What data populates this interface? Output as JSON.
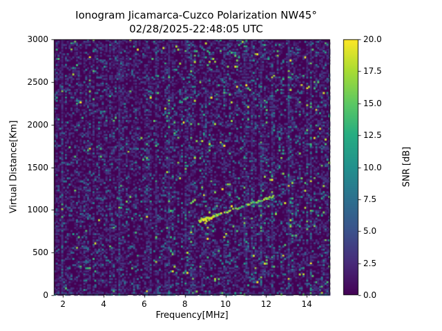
{
  "figure": {
    "background_color": "#ffffff",
    "text_color": "#000000"
  },
  "chart_data": {
    "type": "heatmap",
    "title": "Ionogram Jicamarca-Cuzco Polarization NW45°",
    "subtitle": "02/28/2025-22:48:05 UTC",
    "xlabel": "Frequency[MHz]",
    "ylabel": "Virtual Distance[Km]",
    "xlim": [
      1.55,
      15.15
    ],
    "ylim": [
      0,
      3000
    ],
    "x_ticks": [
      2,
      4,
      6,
      8,
      10,
      12,
      14
    ],
    "x_tick_labels": [
      "2",
      "4",
      "6",
      "8",
      "10",
      "12",
      "14"
    ],
    "y_ticks": [
      0,
      500,
      1000,
      1500,
      2000,
      2500,
      3000
    ],
    "y_tick_labels": [
      "0",
      "500",
      "1000",
      "1500",
      "2000",
      "2500",
      "3000"
    ],
    "colorbar": {
      "label": "SNR [dB]",
      "vmin": 0,
      "vmax": 20,
      "ticks": [
        0,
        2.5,
        5,
        7.5,
        10,
        12.5,
        15,
        17.5,
        20
      ],
      "tick_labels": [
        "0.0",
        "2.5",
        "5.0",
        "7.5",
        "10.0",
        "12.5",
        "15.0",
        "17.5",
        "20.0"
      ],
      "colormap": "viridis",
      "color_low": "#440154",
      "color_high": "#fde725"
    },
    "background_value": 0,
    "noise": {
      "description": "random speckle noise over dark viridis background with vertical streaking",
      "seed": 1337,
      "grid": {
        "cols": 150,
        "rows": 165
      },
      "base_density": 0.42,
      "streak_probability": 0.1,
      "bright_boost_above_mhz": 7.2
    },
    "echo_trace": {
      "description": "oblique ionospheric echo trace rising left to right",
      "x_start_mhz": 8.7,
      "y_start_km": 875,
      "x_end_mhz": 12.3,
      "y_end_km": 1165,
      "snr_db_range": [
        12,
        20
      ]
    }
  }
}
